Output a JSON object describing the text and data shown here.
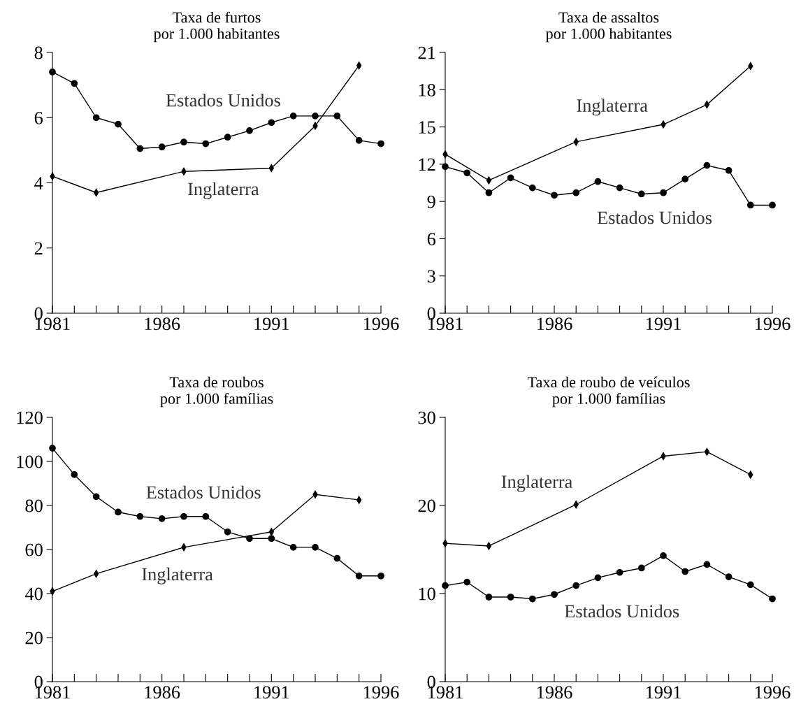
{
  "chart_data": [
    {
      "type": "line",
      "title": "Taxa de furtos\npor 1.000 habitantes",
      "xlim": [
        1981,
        1996
      ],
      "ylim": [
        0,
        8
      ],
      "yticks": [
        0,
        2,
        4,
        6,
        8
      ],
      "xticks": [
        {
          "value": 1981,
          "label": "1981"
        },
        {
          "value": 1982,
          "label": null
        },
        {
          "value": 1983,
          "label": null
        },
        {
          "value": 1984,
          "label": null
        },
        {
          "value": 1985,
          "label": null
        },
        {
          "value": 1986,
          "label": "1986"
        },
        {
          "value": 1987,
          "label": null
        },
        {
          "value": 1988,
          "label": null
        },
        {
          "value": 1989,
          "label": null
        },
        {
          "value": 1990,
          "label": null
        },
        {
          "value": 1991,
          "label": "1991"
        },
        {
          "value": 1992,
          "label": null
        },
        {
          "value": 1993,
          "label": null
        },
        {
          "value": 1994,
          "label": null
        },
        {
          "value": 1995,
          "label": null
        },
        {
          "value": 1996,
          "label": "1996"
        }
      ],
      "series": [
        {
          "name": "Estados Unidos",
          "color": "#000000",
          "marker": "circle",
          "x": [
            1981,
            1982,
            1983,
            1984,
            1985,
            1986,
            1987,
            1988,
            1989,
            1990,
            1991,
            1992,
            1993,
            1994,
            1995,
            1996
          ],
          "values": [
            7.4,
            7.05,
            6.0,
            5.8,
            5.05,
            5.1,
            5.25,
            5.2,
            5.4,
            5.6,
            5.85,
            6.05,
            6.05,
            6.05,
            5.3,
            5.2
          ]
        },
        {
          "name": "Inglaterra",
          "color": "#000000",
          "marker": "diamond",
          "x": [
            1981,
            1983,
            1987,
            1991,
            1993,
            1995
          ],
          "values": [
            4.2,
            3.7,
            4.35,
            4.45,
            5.75,
            7.6
          ]
        }
      ]
    },
    {
      "type": "line",
      "title": "Taxa de assaltos\npor 1.000 habitantes",
      "xlim": [
        1981,
        1996
      ],
      "ylim": [
        0,
        21
      ],
      "yticks": [
        0,
        3,
        6,
        9,
        12,
        15,
        18,
        21
      ],
      "xticks": [
        {
          "value": 1981,
          "label": "1981"
        },
        {
          "value": 1982,
          "label": null
        },
        {
          "value": 1983,
          "label": null
        },
        {
          "value": 1984,
          "label": null
        },
        {
          "value": 1985,
          "label": null
        },
        {
          "value": 1986,
          "label": "1986"
        },
        {
          "value": 1987,
          "label": null
        },
        {
          "value": 1988,
          "label": null
        },
        {
          "value": 1989,
          "label": null
        },
        {
          "value": 1990,
          "label": null
        },
        {
          "value": 1991,
          "label": "1991"
        },
        {
          "value": 1992,
          "label": null
        },
        {
          "value": 1993,
          "label": null
        },
        {
          "value": 1994,
          "label": null
        },
        {
          "value": 1995,
          "label": null
        },
        {
          "value": 1996,
          "label": "1996"
        }
      ],
      "series": [
        {
          "name": "Inglaterra",
          "color": "#000000",
          "marker": "diamond",
          "x": [
            1981,
            1983,
            1987,
            1991,
            1993,
            1995
          ],
          "values": [
            12.8,
            10.7,
            13.8,
            15.2,
            16.8,
            19.9
          ]
        },
        {
          "name": "Estados Unidos",
          "color": "#000000",
          "marker": "circle",
          "x": [
            1981,
            1982,
            1983,
            1984,
            1985,
            1986,
            1987,
            1988,
            1989,
            1990,
            1991,
            1992,
            1993,
            1994,
            1995,
            1996
          ],
          "values": [
            11.8,
            11.3,
            9.7,
            10.9,
            10.1,
            9.5,
            9.7,
            10.6,
            10.1,
            9.6,
            9.7,
            10.8,
            11.9,
            11.5,
            8.7,
            8.7
          ]
        }
      ]
    },
    {
      "type": "line",
      "title": "Taxa de roubos\npor 1.000 famílias",
      "xlim": [
        1981,
        1996
      ],
      "ylim": [
        0,
        120
      ],
      "yticks": [
        0,
        20,
        40,
        60,
        80,
        100,
        120
      ],
      "xticks": [
        {
          "value": 1981,
          "label": "1981"
        },
        {
          "value": 1982,
          "label": null
        },
        {
          "value": 1983,
          "label": null
        },
        {
          "value": 1984,
          "label": null
        },
        {
          "value": 1985,
          "label": null
        },
        {
          "value": 1986,
          "label": "1986"
        },
        {
          "value": 1987,
          "label": null
        },
        {
          "value": 1988,
          "label": null
        },
        {
          "value": 1989,
          "label": null
        },
        {
          "value": 1990,
          "label": null
        },
        {
          "value": 1991,
          "label": "1991"
        },
        {
          "value": 1992,
          "label": null
        },
        {
          "value": 1993,
          "label": null
        },
        {
          "value": 1994,
          "label": null
        },
        {
          "value": 1995,
          "label": null
        },
        {
          "value": 1996,
          "label": "1996"
        }
      ],
      "series": [
        {
          "name": "Estados Unidos",
          "color": "#000000",
          "marker": "circle",
          "x": [
            1981,
            1982,
            1983,
            1984,
            1985,
            1986,
            1987,
            1988,
            1989,
            1990,
            1991,
            1992,
            1993,
            1994,
            1995,
            1996
          ],
          "values": [
            106,
            94,
            84,
            77,
            75,
            74,
            75,
            75,
            68,
            65,
            65,
            61,
            61,
            56,
            48,
            48
          ]
        },
        {
          "name": "Inglaterra",
          "color": "#000000",
          "marker": "diamond",
          "x": [
            1981,
            1983,
            1987,
            1991,
            1993,
            1995
          ],
          "values": [
            41,
            49,
            61,
            68,
            85,
            82.5
          ]
        }
      ]
    },
    {
      "type": "line",
      "title": "Taxa de roubo de veículos\npor 1.000 famílias",
      "xlim": [
        1981,
        1996
      ],
      "ylim": [
        0,
        30
      ],
      "yticks": [
        0,
        10,
        20,
        30
      ],
      "xticks": [
        {
          "value": 1981,
          "label": "1981"
        },
        {
          "value": 1982,
          "label": null
        },
        {
          "value": 1983,
          "label": null
        },
        {
          "value": 1984,
          "label": null
        },
        {
          "value": 1985,
          "label": null
        },
        {
          "value": 1986,
          "label": "1986"
        },
        {
          "value": 1987,
          "label": null
        },
        {
          "value": 1988,
          "label": null
        },
        {
          "value": 1989,
          "label": null
        },
        {
          "value": 1990,
          "label": null
        },
        {
          "value": 1991,
          "label": "1991"
        },
        {
          "value": 1992,
          "label": null
        },
        {
          "value": 1993,
          "label": null
        },
        {
          "value": 1994,
          "label": null
        },
        {
          "value": 1995,
          "label": null
        },
        {
          "value": 1996,
          "label": "1996"
        }
      ],
      "series": [
        {
          "name": "Inglaterra",
          "color": "#000000",
          "marker": "diamond",
          "x": [
            1981,
            1983,
            1987,
            1991,
            1993,
            1995
          ],
          "values": [
            15.7,
            15.4,
            20.1,
            25.6,
            26.1,
            23.5
          ]
        },
        {
          "name": "Estados Unidos",
          "color": "#000000",
          "marker": "circle",
          "x": [
            1981,
            1982,
            1983,
            1984,
            1985,
            1986,
            1987,
            1988,
            1989,
            1990,
            1991,
            1992,
            1993,
            1994,
            1995,
            1996
          ],
          "values": [
            10.9,
            11.3,
            9.6,
            9.6,
            9.4,
            9.9,
            10.9,
            11.8,
            12.4,
            12.9,
            14.3,
            12.5,
            13.3,
            11.9,
            11.0,
            9.4
          ]
        }
      ]
    }
  ]
}
